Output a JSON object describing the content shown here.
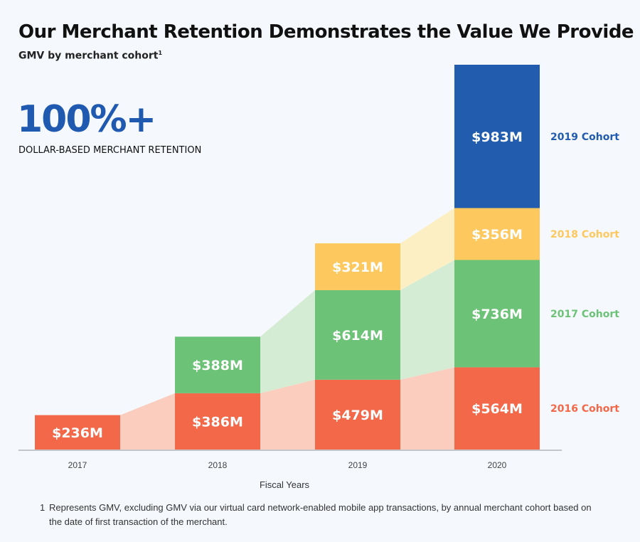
{
  "title": "Our Merchant Retention Demonstrates the Value We Provide",
  "subtitle": "GMV by merchant cohort",
  "subtitle_footnote_mark": "1",
  "highlight": {
    "value": "100%+",
    "label": "DOLLAR-BASED MERCHANT RETENTION"
  },
  "footnote": {
    "mark": "1",
    "text": "Represents GMV, excluding GMV via our virtual card network-enabled mobile app transactions, by annual merchant cohort based on the date of first transaction of the merchant."
  },
  "colors": {
    "background": "#f5f8fc",
    "highlight": "#1f5ab0"
  },
  "chart_data": {
    "type": "bar",
    "stacked": true,
    "xlabel": "Fiscal Years",
    "ylabel": "",
    "categories": [
      "2017",
      "2018",
      "2019",
      "2020"
    ],
    "unit": "$M",
    "legend_position": "right",
    "grid": false,
    "series": [
      {
        "name": "2016 Cohort",
        "color": "#f26849",
        "band_color": "#fbcdbe",
        "values": [
          236,
          386,
          479,
          564
        ],
        "labels": [
          "$236M",
          "$386M",
          "$479M",
          "$564M"
        ]
      },
      {
        "name": "2017 Cohort",
        "color": "#6cc276",
        "band_color": "#d5ecd4",
        "values": [
          null,
          388,
          614,
          736
        ],
        "labels": [
          "",
          "$388M",
          "$614M",
          "$736M"
        ]
      },
      {
        "name": "2018 Cohort",
        "color": "#fdc85d",
        "band_color": "#fdefc4",
        "values": [
          null,
          null,
          321,
          356
        ],
        "labels": [
          "",
          "",
          "$321M",
          "$356M"
        ]
      },
      {
        "name": "2019 Cohort",
        "color": "#215cae",
        "band_color": "#215cae",
        "values": [
          null,
          null,
          null,
          983
        ],
        "labels": [
          "",
          "",
          "",
          "$983M"
        ]
      }
    ]
  }
}
